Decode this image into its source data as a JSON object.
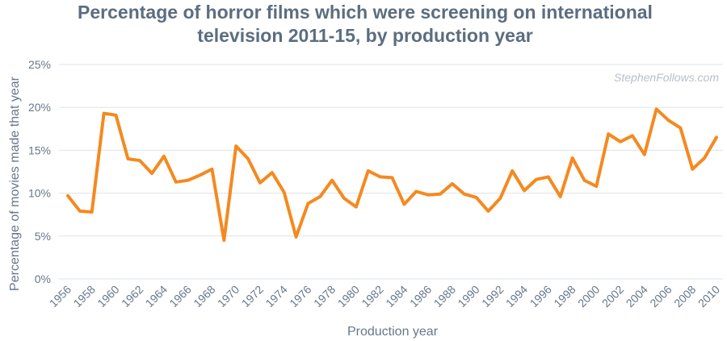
{
  "chart_data": {
    "type": "line",
    "title": {
      "line1": "Percentage of horror films which were screening on international",
      "line2": "television 2011-15, by production year"
    },
    "watermark": "StephenFollows.com",
    "xlabel": "Production year",
    "ylabel": "Percentage of movies made that year",
    "x": [
      1956,
      1957,
      1958,
      1959,
      1960,
      1961,
      1962,
      1963,
      1964,
      1965,
      1966,
      1967,
      1968,
      1969,
      1970,
      1971,
      1972,
      1973,
      1974,
      1975,
      1976,
      1977,
      1978,
      1979,
      1980,
      1981,
      1982,
      1983,
      1984,
      1985,
      1986,
      1987,
      1988,
      1989,
      1990,
      1991,
      1992,
      1993,
      1994,
      1995,
      1996,
      1997,
      1998,
      1999,
      2000,
      2001,
      2002,
      2003,
      2004,
      2005,
      2006,
      2007,
      2008,
      2009,
      2010
    ],
    "x_tick_labels": [
      "1956",
      "1958",
      "1960",
      "1962",
      "1964",
      "1966",
      "1968",
      "1970",
      "1972",
      "1974",
      "1976",
      "1978",
      "1980",
      "1982",
      "1984",
      "1986",
      "1988",
      "1990",
      "1992",
      "1994",
      "1996",
      "1998",
      "2000",
      "2002",
      "2004",
      "2006",
      "2008",
      "2010"
    ],
    "y_tick_labels": [
      "0%",
      "5%",
      "10%",
      "15%",
      "20%",
      "25%"
    ],
    "y_ticks": [
      0,
      5,
      10,
      15,
      20,
      25
    ],
    "ylim": [
      0,
      25
    ],
    "xlim": [
      1956,
      2010
    ],
    "grid": true,
    "series": [
      {
        "color": "#f5891f",
        "values": [
          9.7,
          7.9,
          7.8,
          19.3,
          19.1,
          14.0,
          13.8,
          12.3,
          14.3,
          11.3,
          11.5,
          12.1,
          12.8,
          4.5,
          15.5,
          14.0,
          11.2,
          12.4,
          10.1,
          4.9,
          8.8,
          9.6,
          11.5,
          9.4,
          8.4,
          12.6,
          11.9,
          11.8,
          8.7,
          10.2,
          9.8,
          9.9,
          11.1,
          9.9,
          9.5,
          7.9,
          9.4,
          12.6,
          10.3,
          11.6,
          11.9,
          9.6,
          14.1,
          11.5,
          10.8,
          16.9,
          16.0,
          16.7,
          14.5,
          19.8,
          18.5,
          17.6,
          12.8,
          14.1,
          16.5
        ]
      }
    ]
  }
}
